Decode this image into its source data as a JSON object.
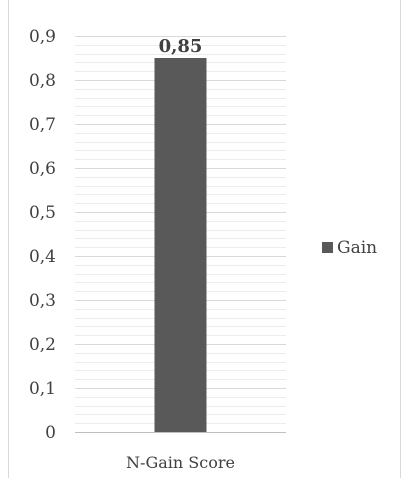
{
  "chart_data": {
    "type": "bar",
    "categories": [
      "N-Gain Score"
    ],
    "series": [
      {
        "name": "Gain",
        "values": [
          0.85
        ]
      }
    ],
    "data_labels": [
      "0,85"
    ],
    "yticks": [
      "0",
      "0,1",
      "0,2",
      "0,3",
      "0,4",
      "0,5",
      "0,6",
      "0,7",
      "0,8",
      "0,9"
    ],
    "ylim": [
      0,
      0.9
    ],
    "title": "",
    "xlabel": "",
    "ylabel": "",
    "grid": "horizontal major and minor",
    "legend_position": "right",
    "colors": {
      "bar": "#595959",
      "grid_major": "#d9d9d9",
      "grid_minor": "#ececec",
      "axis": "#bfbfbf",
      "text": "#404040",
      "frame": "#d9d9d9"
    }
  }
}
